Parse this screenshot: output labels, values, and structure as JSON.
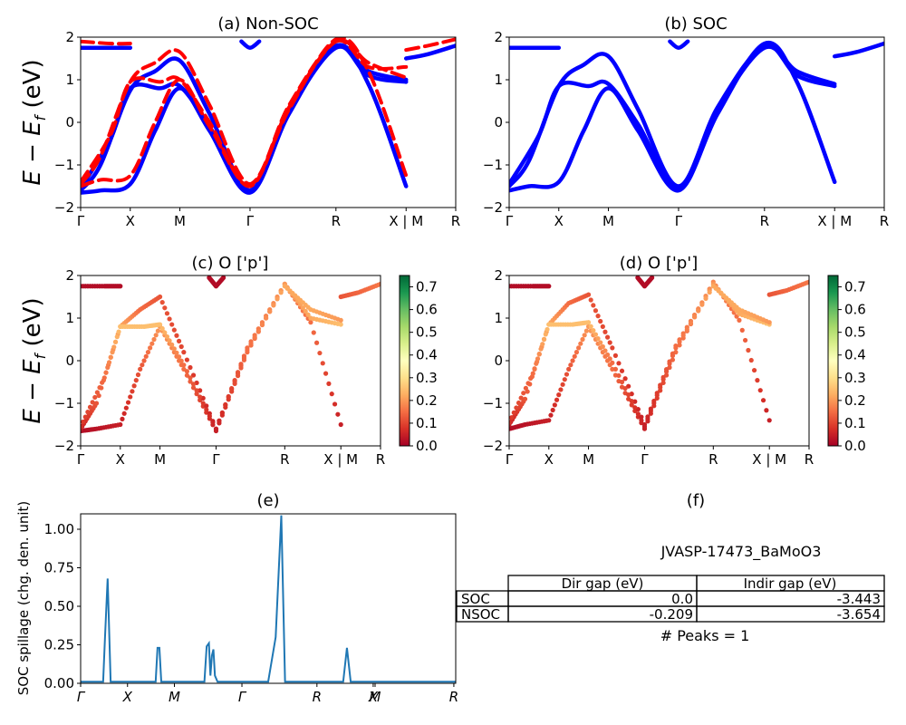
{
  "chart_data": [
    {
      "id": "a",
      "type": "line",
      "title": "(a) Non-SOC",
      "ylabel": "E − E_f (eV)",
      "ylim": [
        -2,
        2
      ],
      "yticks": [
        "−2",
        "−1",
        "0",
        "1",
        "2"
      ],
      "xticks": [
        "Γ",
        "X",
        "M",
        "Γ",
        "R",
        "X | M",
        "R"
      ],
      "k_ticks": [
        0,
        0.5,
        1.0,
        1.707,
        2.573,
        3.28,
        3.78
      ],
      "colors": {
        "solid": "#0000ff",
        "dashed": "#ff0000"
      },
      "series": [
        {
          "style": "solid",
          "x": [
            0,
            0.2,
            0.5,
            0.75,
            1.0,
            1.3,
            1.707,
            2.1,
            2.573,
            2.9,
            3.28
          ],
          "y": [
            -1.65,
            -1.6,
            -1.45,
            -0.2,
            0.8,
            -0.2,
            -1.65,
            0.2,
            1.8,
            0.9,
            -1.5
          ]
        },
        {
          "style": "solid",
          "x": [
            0,
            0.2,
            0.5,
            0.75,
            1.0,
            1.3,
            1.707,
            2.1,
            2.573,
            2.9,
            3.28
          ],
          "y": [
            -1.6,
            -1.0,
            0.75,
            1.2,
            1.45,
            0.2,
            -1.6,
            0.3,
            1.78,
            1.1,
            0.95
          ]
        },
        {
          "style": "solid",
          "x": [
            0,
            0.3,
            0.5,
            0.8,
            1.0,
            1.3,
            1.707,
            2.1,
            2.573,
            2.9,
            3.28
          ],
          "y": [
            -1.55,
            -0.4,
            0.8,
            0.8,
            0.85,
            -0.1,
            -1.6,
            0.25,
            1.75,
            1.2,
            1.0
          ]
        },
        {
          "style": "solid",
          "x": [
            0,
            0.3,
            0.5
          ],
          "y": [
            1.75,
            1.75,
            1.75
          ]
        },
        {
          "style": "solid",
          "x": [
            1.62,
            1.707,
            1.8
          ],
          "y": [
            1.9,
            1.75,
            1.9
          ]
        },
        {
          "style": "solid",
          "x": [
            3.28,
            3.5,
            3.78
          ],
          "y": [
            1.5,
            1.6,
            1.8
          ]
        },
        {
          "style": "dashed",
          "x": [
            0,
            0.2,
            0.5,
            0.75,
            1.0,
            1.3,
            1.707,
            2.1,
            2.573,
            2.9,
            3.28
          ],
          "y": [
            -1.5,
            -1.35,
            -1.25,
            0.0,
            1.0,
            -0.1,
            -1.45,
            0.3,
            1.95,
            1.2,
            -1.25
          ]
        },
        {
          "style": "dashed",
          "x": [
            0,
            0.2,
            0.5,
            0.75,
            1.0,
            1.3,
            1.707,
            2.1,
            2.573,
            2.9,
            3.28
          ],
          "y": [
            -1.45,
            -0.8,
            0.95,
            1.4,
            1.65,
            0.4,
            -1.45,
            0.4,
            1.9,
            1.3,
            1.3
          ]
        },
        {
          "style": "dashed",
          "x": [
            0,
            0.3,
            0.5,
            0.8,
            1.0,
            1.3,
            1.707,
            2.1,
            2.573,
            2.9,
            3.28
          ],
          "y": [
            -1.4,
            -0.3,
            0.95,
            0.95,
            1.0,
            0.0,
            -1.5,
            0.35,
            1.9,
            1.4,
            1.05
          ]
        },
        {
          "style": "dashed",
          "x": [
            0,
            0.3,
            0.5
          ],
          "y": [
            1.9,
            1.85,
            1.85
          ]
        },
        {
          "style": "dashed",
          "x": [
            3.28,
            3.5,
            3.78
          ],
          "y": [
            1.7,
            1.8,
            1.95
          ]
        }
      ]
    },
    {
      "id": "b",
      "type": "line",
      "title": "(b) SOC",
      "ylim": [
        -2,
        2
      ],
      "yticks": [
        "−2",
        "−1",
        "0",
        "1",
        "2"
      ],
      "xticks": [
        "Γ",
        "X",
        "M",
        "Γ",
        "R",
        "X | M",
        "R"
      ],
      "k_ticks": [
        0,
        0.5,
        1.0,
        1.707,
        2.573,
        3.28,
        3.78
      ],
      "colors": {
        "solid": "#0000ff"
      },
      "series": [
        {
          "style": "solid",
          "x": [
            0,
            0.2,
            0.5,
            0.75,
            1.0,
            1.3,
            1.707,
            2.1,
            2.573,
            2.9,
            3.28
          ],
          "y": [
            -1.6,
            -1.5,
            -1.4,
            -0.2,
            0.8,
            -0.2,
            -1.6,
            0.2,
            1.85,
            0.95,
            -1.4
          ]
        },
        {
          "style": "solid",
          "x": [
            0,
            0.2,
            0.5,
            0.75,
            1.0,
            1.3,
            1.707,
            2.1,
            2.573,
            2.9,
            3.28
          ],
          "y": [
            -1.5,
            -0.9,
            0.85,
            1.35,
            1.55,
            0.3,
            -1.5,
            0.35,
            1.8,
            1.1,
            0.85
          ]
        },
        {
          "style": "solid",
          "x": [
            0,
            0.3,
            0.5,
            0.8,
            1.0,
            1.3,
            1.707,
            2.1,
            2.573,
            2.9,
            3.28
          ],
          "y": [
            -1.45,
            -0.3,
            0.85,
            0.85,
            0.9,
            -0.05,
            -1.55,
            0.3,
            1.75,
            1.2,
            0.9
          ]
        },
        {
          "style": "solid",
          "x": [
            0,
            0.3,
            0.5
          ],
          "y": [
            1.75,
            1.75,
            1.75
          ]
        },
        {
          "style": "solid",
          "x": [
            1.62,
            1.707,
            1.8
          ],
          "y": [
            1.9,
            1.75,
            1.9
          ]
        },
        {
          "style": "solid",
          "x": [
            3.28,
            3.5,
            3.78
          ],
          "y": [
            1.55,
            1.65,
            1.85
          ]
        }
      ]
    },
    {
      "id": "c",
      "type": "scatter",
      "title": "(c)  O ['p']",
      "ylabel": "E − E_f (eV)",
      "ylim": [
        -2,
        2
      ],
      "yticks": [
        "−2",
        "−1",
        "0",
        "1",
        "2"
      ],
      "xticks": [
        "Γ",
        "X",
        "M",
        "Γ",
        "R",
        "X | M",
        "R"
      ],
      "k_ticks": [
        0,
        0.5,
        1.0,
        1.707,
        2.573,
        3.28,
        3.78
      ],
      "colorbar": {
        "ticks": [
          "0.0",
          "0.1",
          "0.2",
          "0.3",
          "0.4",
          "0.5",
          "0.6",
          "0.7"
        ],
        "range": [
          0,
          0.75
        ],
        "colormap": "RdYlGn"
      },
      "series": [
        {
          "x": [
            0,
            0.2,
            0.5,
            0.75,
            1.0,
            1.3,
            1.707,
            2.1,
            2.573,
            2.9,
            3.28
          ],
          "y": [
            -1.65,
            -1.6,
            -1.5,
            -0.2,
            0.8,
            -0.2,
            -1.65,
            0.2,
            1.8,
            0.9,
            -1.5
          ],
          "c": [
            0.02,
            0.03,
            0.05,
            0.12,
            0.2,
            0.15,
            0.05,
            0.15,
            0.18,
            0.15,
            0.05
          ]
        },
        {
          "x": [
            0,
            0.2,
            0.5,
            0.75,
            1.0,
            1.3,
            1.707,
            2.1,
            2.573,
            2.9,
            3.28
          ],
          "y": [
            -1.6,
            -1.0,
            0.8,
            1.2,
            1.5,
            0.2,
            -1.6,
            0.3,
            1.8,
            1.0,
            0.85
          ],
          "c": [
            0.05,
            0.12,
            0.22,
            0.15,
            0.12,
            0.1,
            0.05,
            0.15,
            0.2,
            0.22,
            0.25
          ]
        },
        {
          "x": [
            0,
            0.3,
            0.5,
            0.8,
            1.0,
            1.3,
            1.707,
            2.1,
            2.573,
            2.9,
            3.28
          ],
          "y": [
            -1.55,
            -0.4,
            0.8,
            0.8,
            0.85,
            -0.1,
            -1.6,
            0.25,
            1.75,
            1.2,
            0.95
          ],
          "c": [
            0.08,
            0.15,
            0.25,
            0.25,
            0.25,
            0.15,
            0.05,
            0.15,
            0.22,
            0.22,
            0.2
          ]
        },
        {
          "x": [
            0,
            0.3,
            0.5
          ],
          "y": [
            1.75,
            1.75,
            1.75
          ],
          "c": [
            0.02,
            0.02,
            0.02
          ]
        },
        {
          "x": [
            1.62,
            1.707,
            1.8
          ],
          "y": [
            1.95,
            1.75,
            1.95
          ],
          "c": [
            0.02,
            0.02,
            0.02
          ]
        },
        {
          "x": [
            3.28,
            3.5,
            3.78
          ],
          "y": [
            1.5,
            1.6,
            1.8
          ],
          "c": [
            0.12,
            0.14,
            0.16
          ]
        }
      ]
    },
    {
      "id": "d",
      "type": "scatter",
      "title": "(d) O ['p']",
      "ylim": [
        -2,
        2
      ],
      "yticks": [
        "−2",
        "−1",
        "0",
        "1",
        "2"
      ],
      "xticks": [
        "Γ",
        "X",
        "M",
        "Γ",
        "R",
        "X | M",
        "R"
      ],
      "k_ticks": [
        0,
        0.5,
        1.0,
        1.707,
        2.573,
        3.28,
        3.78
      ],
      "colorbar": {
        "ticks": [
          "0.0",
          "0.1",
          "0.2",
          "0.3",
          "0.4",
          "0.5",
          "0.6",
          "0.7"
        ],
        "range": [
          0,
          0.75
        ],
        "colormap": "RdYlGn"
      },
      "series": [
        {
          "x": [
            0,
            0.2,
            0.5,
            0.75,
            1.0,
            1.3,
            1.707,
            2.1,
            2.573,
            2.9,
            3.28
          ],
          "y": [
            -1.6,
            -1.5,
            -1.4,
            -0.2,
            0.8,
            -0.2,
            -1.6,
            0.2,
            1.85,
            0.95,
            -1.4
          ],
          "c": [
            0.02,
            0.03,
            0.05,
            0.12,
            0.2,
            0.15,
            0.05,
            0.15,
            0.18,
            0.15,
            0.05
          ]
        },
        {
          "x": [
            0,
            0.2,
            0.5,
            0.75,
            1.0,
            1.3,
            1.707,
            2.1,
            2.573,
            2.9,
            3.28
          ],
          "y": [
            -1.5,
            -0.9,
            0.85,
            1.35,
            1.55,
            0.3,
            -1.5,
            0.35,
            1.8,
            1.1,
            0.85
          ],
          "c": [
            0.05,
            0.12,
            0.22,
            0.15,
            0.12,
            0.1,
            0.05,
            0.15,
            0.2,
            0.22,
            0.25
          ]
        },
        {
          "x": [
            0,
            0.3,
            0.5,
            0.8,
            1.0,
            1.3,
            1.707,
            2.1,
            2.573,
            2.9,
            3.28
          ],
          "y": [
            -1.45,
            -0.3,
            0.85,
            0.85,
            0.9,
            -0.05,
            -1.55,
            0.3,
            1.75,
            1.2,
            0.9
          ],
          "c": [
            0.08,
            0.15,
            0.25,
            0.25,
            0.25,
            0.15,
            0.05,
            0.15,
            0.22,
            0.22,
            0.2
          ]
        },
        {
          "x": [
            0,
            0.3,
            0.5
          ],
          "y": [
            1.75,
            1.75,
            1.75
          ],
          "c": [
            0.02,
            0.02,
            0.02
          ]
        },
        {
          "x": [
            1.62,
            1.707,
            1.8
          ],
          "y": [
            1.95,
            1.75,
            1.95
          ],
          "c": [
            0.02,
            0.02,
            0.02
          ]
        },
        {
          "x": [
            3.28,
            3.5,
            3.78
          ],
          "y": [
            1.55,
            1.65,
            1.85
          ],
          "c": [
            0.12,
            0.14,
            0.16
          ]
        }
      ]
    },
    {
      "id": "e",
      "type": "line",
      "title": "(e)",
      "ylabel": "SOC spillage (chg. den. unit)",
      "ylim": [
        0,
        1.1
      ],
      "yticks": [
        "0.00",
        "0.25",
        "0.50",
        "0.75",
        "1.00"
      ],
      "ytick_values": [
        0,
        0.25,
        0.5,
        0.75,
        1.0
      ],
      "xlim": [
        0,
        1
      ],
      "xticks": [
        "Γ",
        "X",
        "M",
        "Γ",
        "R",
        "X",
        "M",
        "R"
      ],
      "xtick_values": [
        0,
        0.125,
        0.25,
        0.43,
        0.63,
        0.78,
        0.785,
        0.995
      ],
      "color": "#1f77b4",
      "series": [
        {
          "x": [
            0,
            0.06,
            0.065,
            0.072,
            0.08,
            0.2,
            0.205,
            0.21,
            0.215,
            0.33,
            0.336,
            0.342,
            0.346,
            0.35,
            0.354,
            0.358,
            0.365,
            0.5,
            0.52,
            0.535,
            0.545,
            0.7,
            0.7,
            0.71,
            0.72,
            0.74,
            1.0
          ],
          "y": [
            0.01,
            0.01,
            0.3,
            0.68,
            0.01,
            0.01,
            0.23,
            0.23,
            0.01,
            0.01,
            0.24,
            0.26,
            0.05,
            0.18,
            0.22,
            0.05,
            0.01,
            0.01,
            0.3,
            1.09,
            0.01,
            0.01,
            0.01,
            0.23,
            0.01,
            0.01,
            0.01
          ]
        }
      ]
    }
  ],
  "panel_f": {
    "title": "(f)",
    "material": "JVASP-17473_BaMoO3",
    "columns": [
      "Dir gap (eV)",
      "Indir gap (eV)"
    ],
    "rows": [
      {
        "label": "SOC",
        "dir": "0.0",
        "indir": "-3.443"
      },
      {
        "label": "NSOC",
        "dir": "-0.209",
        "indir": "-3.654"
      }
    ],
    "peaks": "# Peaks = 1"
  }
}
